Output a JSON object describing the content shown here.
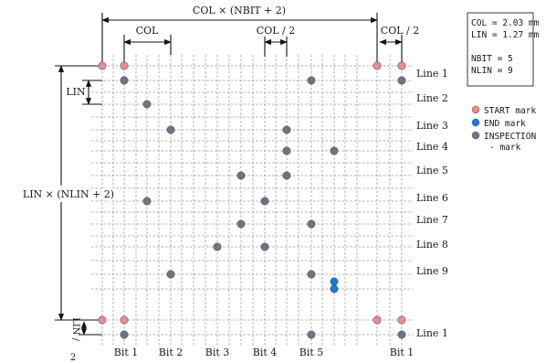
{
  "dimension_labels": {
    "top_total": "COL × (NBIT + 2)",
    "col": "COL",
    "col_half_mid": "COL / 2",
    "col_half_right": "COL / 2",
    "lin": "LIN",
    "left_total": "LIN × (NLIN + 2)",
    "lin_half_top": "LIN /",
    "lin_half_bottom": "2"
  },
  "params_box": {
    "col": "COL = 2.03 mm",
    "lin": "LIN = 1.27 mm",
    "nbit": "NBIT = 5",
    "nlin": "NLIN = 9"
  },
  "legend": {
    "start": "START mark",
    "end": "END mark",
    "inspection_1": "INSPECTION",
    "inspection_2": "- mark"
  },
  "colors": {
    "start": "#ee8a92",
    "end": "#1a78d8",
    "inspection": "#6d7584"
  },
  "row_labels": [
    "Line 1",
    "Line 2",
    "Line 3",
    "Line 4",
    "Line 5",
    "Line 6",
    "Line 7",
    "Line 8",
    "Line 9",
    "Line 1"
  ],
  "col_labels": [
    "Bit 1",
    "Bit 2",
    "Bit 3",
    "Bit 4",
    "Bit 5",
    "Bit 1"
  ],
  "marks": {
    "start": [
      [
        0,
        0
      ],
      [
        1,
        0
      ],
      [
        13,
        0
      ],
      [
        14,
        0
      ],
      [
        0,
        11
      ],
      [
        1,
        11
      ],
      [
        13,
        11
      ],
      [
        14,
        11
      ]
    ],
    "end": [
      [
        10,
        9.5
      ],
      [
        10,
        10
      ]
    ],
    "inspection": [
      [
        1,
        1
      ],
      [
        9,
        1
      ],
      [
        14,
        1
      ],
      [
        2,
        2
      ],
      [
        3,
        3
      ],
      [
        8,
        3
      ],
      [
        8,
        4
      ],
      [
        10,
        4
      ],
      [
        6,
        5
      ],
      [
        8,
        5
      ],
      [
        2,
        6
      ],
      [
        7,
        6
      ],
      [
        6,
        7
      ],
      [
        9,
        7
      ],
      [
        5,
        8
      ],
      [
        7,
        8
      ],
      [
        3,
        9
      ],
      [
        9,
        9
      ],
      [
        1,
        12
      ],
      [
        9,
        12
      ],
      [
        14,
        12
      ]
    ]
  }
}
